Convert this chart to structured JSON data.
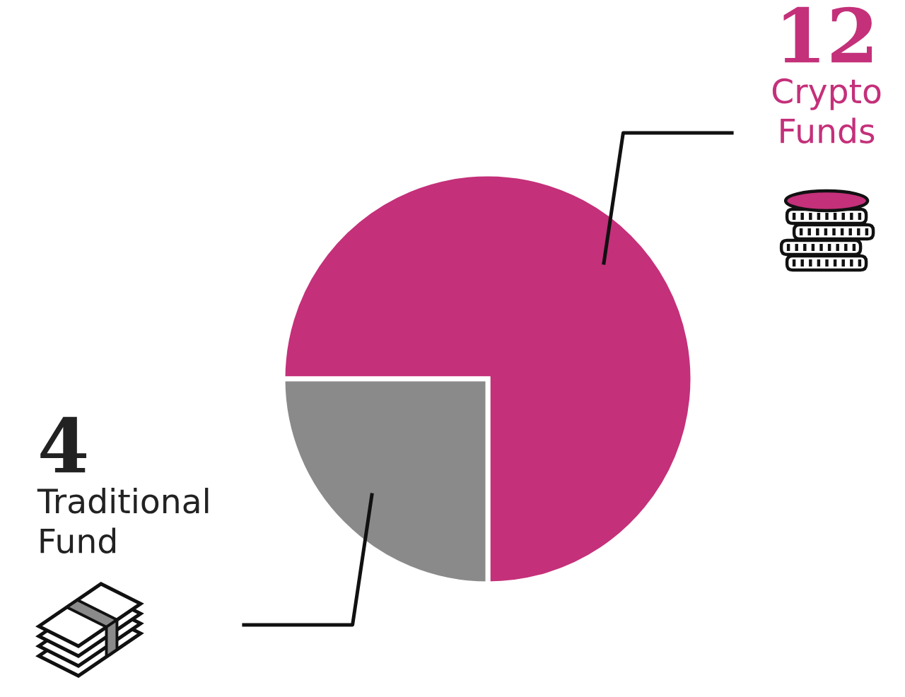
{
  "chart_data": {
    "type": "pie",
    "categories": [
      "Crypto Funds",
      "Traditional Fund"
    ],
    "values": [
      12,
      4
    ],
    "colors": [
      "#c4307a",
      "#8a8a8a"
    ],
    "data_labels": true
  }
}
